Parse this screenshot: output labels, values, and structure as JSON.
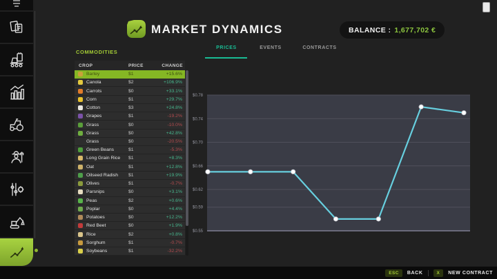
{
  "app": {
    "title": "MARKET DYNAMICS",
    "balance_label": "BALANCE :",
    "balance_value": "1,677,702 €"
  },
  "tabs": [
    {
      "label": "PRICES",
      "active": true
    },
    {
      "label": "EVENTS",
      "active": false
    },
    {
      "label": "CONTRACTS",
      "active": false
    }
  ],
  "commodities": {
    "section_label": "COMMODITIES",
    "columns": [
      "CROP",
      "PRICE",
      "CHANGE"
    ],
    "rows": [
      {
        "name": "Barley",
        "price": "$1",
        "change": "+15.6%",
        "dir": "up",
        "selected": true,
        "icon": "barley-crop-icon",
        "icon_color": "#c9a13b"
      },
      {
        "name": "Canola",
        "price": "$2",
        "change": "+106.9%",
        "dir": "up",
        "selected": false,
        "icon": "canola-crop-icon",
        "icon_color": "#e3c93f"
      },
      {
        "name": "Carrots",
        "price": "$0",
        "change": "+33.1%",
        "dir": "up",
        "selected": false,
        "icon": "carrots-crop-icon",
        "icon_color": "#e07b2a"
      },
      {
        "name": "Corn",
        "price": "$1",
        "change": "+29.7%",
        "dir": "up",
        "selected": false,
        "icon": "corn-crop-icon",
        "icon_color": "#e8c22e"
      },
      {
        "name": "Cotton",
        "price": "$3",
        "change": "+24.8%",
        "dir": "up",
        "selected": false,
        "icon": "cotton-crop-icon",
        "icon_color": "#e8e6df"
      },
      {
        "name": "Grapes",
        "price": "$1",
        "change": "-19.2%",
        "dir": "down",
        "selected": false,
        "icon": "grapes-crop-icon",
        "icon_color": "#7b52a8"
      },
      {
        "name": "Grass",
        "price": "$0",
        "change": "-10.0%",
        "dir": "down",
        "selected": false,
        "icon": "grass-crop-icon",
        "icon_color": "#5a9e3a"
      },
      {
        "name": "Grass",
        "price": "$0",
        "change": "+42.8%",
        "dir": "up",
        "selected": false,
        "icon": "grass-crop-icon",
        "icon_color": "#6fae3f"
      },
      {
        "name": "Grass",
        "price": "$0",
        "change": "-20.5%",
        "dir": "down",
        "selected": false,
        "icon": "grass-crop-icon",
        "icon_color": null
      },
      {
        "name": "Green Beans",
        "price": "$1",
        "change": "-5.3%",
        "dir": "down",
        "selected": false,
        "icon": "green-beans-crop-icon",
        "icon_color": "#4f9e3c"
      },
      {
        "name": "Long Grain Rice",
        "price": "$1",
        "change": "+8.3%",
        "dir": "up",
        "selected": false,
        "icon": "long-grain-rice-crop-icon",
        "icon_color": "#d8b96a"
      },
      {
        "name": "Oat",
        "price": "$1",
        "change": "+12.8%",
        "dir": "up",
        "selected": false,
        "icon": "oat-crop-icon",
        "icon_color": "#cdb26a"
      },
      {
        "name": "Oilseed Radish",
        "price": "$1",
        "change": "+19.9%",
        "dir": "up",
        "selected": false,
        "icon": "oilseed-radish-crop-icon",
        "icon_color": "#4e9e4a"
      },
      {
        "name": "Olives",
        "price": "$1",
        "change": "-0.7%",
        "dir": "down",
        "selected": false,
        "icon": "olives-crop-icon",
        "icon_color": "#8a9a3c"
      },
      {
        "name": "Parsnips",
        "price": "$0",
        "change": "+3.1%",
        "dir": "up",
        "selected": false,
        "icon": "parsnips-crop-icon",
        "icon_color": "#e6dcc0"
      },
      {
        "name": "Peas",
        "price": "$2",
        "change": "+0.6%",
        "dir": "up",
        "selected": false,
        "icon": "peas-crop-icon",
        "icon_color": "#58b34a"
      },
      {
        "name": "Poplar",
        "price": "$0",
        "change": "+4.4%",
        "dir": "up",
        "selected": false,
        "icon": "poplar-crop-icon",
        "icon_color": "#6faa4e"
      },
      {
        "name": "Potatoes",
        "price": "$0",
        "change": "+12.2%",
        "dir": "up",
        "selected": false,
        "icon": "potatoes-crop-icon",
        "icon_color": "#b08a5a"
      },
      {
        "name": "Red Beet",
        "price": "$0",
        "change": "+1.9%",
        "dir": "up",
        "selected": false,
        "icon": "red-beet-crop-icon",
        "icon_color": "#c23b3b"
      },
      {
        "name": "Rice",
        "price": "$2",
        "change": "+0.8%",
        "dir": "up",
        "selected": false,
        "icon": "rice-crop-icon",
        "icon_color": "#d9c48a"
      },
      {
        "name": "Sorghum",
        "price": "$1",
        "change": "-0.7%",
        "dir": "down",
        "selected": false,
        "icon": "sorghum-crop-icon",
        "icon_color": "#c79a3e"
      },
      {
        "name": "Soybeans",
        "price": "$1",
        "change": "-32.2%",
        "dir": "down",
        "selected": false,
        "icon": "soybeans-crop-icon",
        "icon_color": "#d9cf4a"
      }
    ]
  },
  "chart_data": {
    "type": "line",
    "title": "",
    "xlabel": "",
    "ylabel": "",
    "x": [
      1,
      2,
      3,
      4,
      5,
      6,
      7
    ],
    "values": [
      0.65,
      0.65,
      0.65,
      0.57,
      0.57,
      0.76,
      0.75
    ],
    "ylim": [
      0.55,
      0.78
    ],
    "yticks": [
      "$0.78",
      "$0.74",
      "$0.70",
      "$0.66",
      "$0.62",
      "$0.59",
      "$0.55"
    ],
    "ytick_values": [
      0.78,
      0.74,
      0.7,
      0.66,
      0.62,
      0.59,
      0.55
    ],
    "grid": true,
    "legend": false,
    "line_color": "#67cfdf",
    "marker_color": "#ffffff",
    "plot_bg": "#3a3c46",
    "grid_color": "#50505b",
    "tick_color": "#9596a0"
  },
  "sidebar": {
    "items": [
      {
        "icon": "clipped-top-icon",
        "active": false
      },
      {
        "icon": "documents-icon",
        "active": false
      },
      {
        "icon": "production-icon",
        "active": false
      },
      {
        "icon": "statistics-icon",
        "active": false
      },
      {
        "icon": "tractor-icon",
        "active": false
      },
      {
        "icon": "farmer-icon",
        "active": false
      },
      {
        "icon": "settings-sliders-icon",
        "active": false
      },
      {
        "icon": "excavator-icon",
        "active": false
      },
      {
        "icon": "market-trend-icon",
        "active": true
      }
    ]
  },
  "footer": {
    "esc_key": "ESC",
    "back_label": "BACK",
    "x_key": "X",
    "new_contract_label": "NEW CONTRACT"
  },
  "colors": {
    "accent_green": "#8dc63f",
    "tab_teal": "#19bd95",
    "positive": "#47b78e",
    "negative": "#b34b4e",
    "selected_row": "#85b724"
  }
}
